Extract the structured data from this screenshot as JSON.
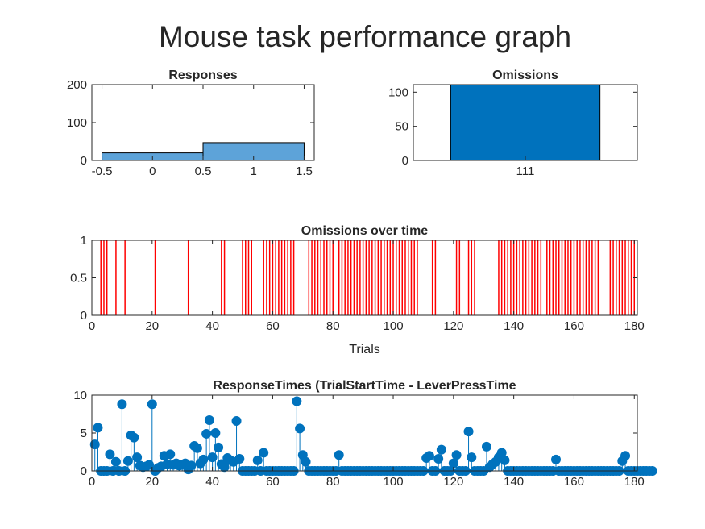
{
  "figure": {
    "title": "Mouse task performance graph"
  },
  "colors": {
    "blue_dark": "#0072BD",
    "blue_light": "#5DA3D9",
    "red": "#FF0000",
    "axis": "#262626"
  },
  "chart_data": [
    {
      "type": "bar",
      "title": "Responses",
      "bars": [
        {
          "x0": -0.5,
          "x1": 0.5,
          "value": 20
        },
        {
          "x0": 0.5,
          "x1": 1.5,
          "value": 47
        }
      ],
      "xlim": [
        -0.6,
        1.6
      ],
      "ylim": [
        0,
        200
      ],
      "xticks": [
        "-0.5",
        "0",
        "0.5",
        "1",
        "1.5"
      ],
      "xtick_values": [
        -0.5,
        0,
        0.5,
        1,
        1.5
      ],
      "yticks": [
        "0",
        "100",
        "200"
      ],
      "ytick_values": [
        0,
        100,
        200
      ]
    },
    {
      "type": "bar",
      "title": "Omissions",
      "categories": [
        "111"
      ],
      "values": [
        111
      ],
      "xlim": [
        0.4,
        1.6
      ],
      "ylim": [
        0,
        111
      ],
      "yticks": [
        "0",
        "50",
        "100"
      ],
      "ytick_values": [
        0,
        50,
        100
      ]
    },
    {
      "type": "stem",
      "title": "Omissions over time",
      "xlabel": "Trials",
      "omission_trials": [
        3,
        4,
        5,
        8,
        11,
        21,
        32,
        43,
        44,
        50,
        51,
        52,
        53,
        57,
        58,
        59,
        60,
        61,
        62,
        63,
        64,
        65,
        66,
        67,
        72,
        73,
        74,
        75,
        76,
        77,
        78,
        79,
        80,
        82,
        83,
        84,
        85,
        86,
        87,
        88,
        89,
        90,
        91,
        92,
        93,
        94,
        95,
        96,
        97,
        98,
        99,
        100,
        101,
        102,
        103,
        104,
        105,
        106,
        107,
        108,
        113,
        114,
        121,
        122,
        125,
        126,
        127,
        135,
        136,
        137,
        138,
        139,
        140,
        141,
        142,
        143,
        144,
        145,
        146,
        147,
        148,
        149,
        151,
        152,
        153,
        154,
        155,
        156,
        157,
        158,
        159,
        160,
        161,
        162,
        163,
        164,
        165,
        166,
        167,
        168,
        172,
        173,
        174,
        175,
        176,
        177,
        178,
        179,
        180
      ],
      "xlim": [
        0,
        181
      ],
      "ylim": [
        0,
        1
      ],
      "xticks": [
        "0",
        "20",
        "40",
        "60",
        "80",
        "100",
        "120",
        "140",
        "160",
        "180"
      ],
      "xtick_values": [
        0,
        20,
        40,
        60,
        80,
        100,
        120,
        140,
        160,
        180
      ],
      "yticks": [
        "0",
        "0.5",
        "1"
      ],
      "ytick_values": [
        0,
        0.5,
        1
      ]
    },
    {
      "type": "stem",
      "title": "ResponseTimes (TrialStartTime - LeverPressTime",
      "response_times": [
        3.5,
        5.7,
        0,
        0,
        0,
        2.2,
        0,
        1.2,
        0,
        8.8,
        0,
        1.3,
        4.7,
        4.4,
        1.8,
        0.7,
        0.5,
        0.6,
        0.8,
        8.8,
        0,
        0.4,
        0.6,
        2,
        0.9,
        2.2,
        0.8,
        1,
        0.7,
        0.8,
        1,
        0.2,
        0.7,
        3.3,
        3,
        1,
        1.5,
        4.9,
        6.7,
        1.8,
        5,
        3.1,
        0.9,
        0.5,
        1.7,
        1.4,
        1.2,
        6.6,
        1.6,
        0,
        0,
        0,
        0,
        0,
        1.4,
        0,
        2.4,
        0,
        0,
        0,
        0,
        0,
        0,
        0,
        0,
        0,
        0,
        9.2,
        5.6,
        2.1,
        1.2,
        0,
        0,
        0,
        0,
        0,
        0,
        0,
        0,
        0,
        0,
        2.1,
        0,
        0,
        0,
        0,
        0,
        0,
        0,
        0,
        0,
        0,
        0,
        0,
        0,
        0,
        0,
        0,
        0,
        0,
        0,
        0,
        0,
        0,
        0,
        0,
        0,
        0,
        0,
        0,
        1.7,
        2,
        0,
        0,
        1.6,
        2.8,
        0,
        0,
        0,
        1,
        2.1,
        0,
        0,
        0,
        5.2,
        1.8,
        0,
        0,
        0,
        0,
        3.2,
        0.5,
        0.9,
        1.2,
        1.8,
        2.4,
        1.4,
        0,
        0,
        0,
        0,
        0,
        0,
        0,
        0,
        0,
        0,
        0,
        0,
        0,
        0,
        0,
        0,
        1.5,
        0,
        0,
        0,
        0,
        0,
        0,
        0,
        0,
        0,
        0,
        0,
        0,
        0,
        0,
        0,
        0,
        0,
        0,
        0,
        0,
        0,
        1.3,
        2,
        0,
        0,
        0,
        0,
        0,
        0,
        0,
        0,
        0
      ],
      "xlim": [
        0,
        181
      ],
      "ylim": [
        0,
        10
      ],
      "xticks": [
        "0",
        "20",
        "40",
        "60",
        "80",
        "100",
        "120",
        "140",
        "160",
        "180"
      ],
      "xtick_values": [
        0,
        20,
        40,
        60,
        80,
        100,
        120,
        140,
        160,
        180
      ],
      "yticks": [
        "0",
        "5",
        "10"
      ],
      "ytick_values": [
        0,
        5,
        10
      ]
    }
  ]
}
